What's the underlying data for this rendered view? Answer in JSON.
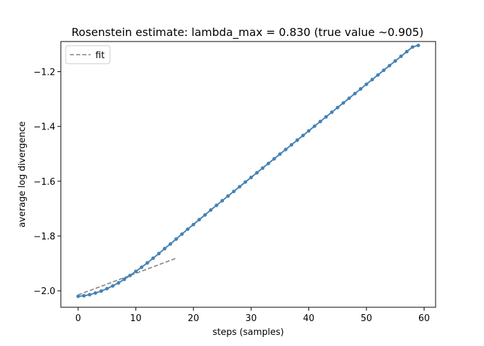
{
  "chart_data": {
    "type": "line",
    "title": "Rosenstein estimate: lambda_max = 0.830 (true value ~0.905)",
    "xlabel": "steps (samples)",
    "ylabel": "average log divergence",
    "xlim": [
      -3,
      62
    ],
    "ylim": [
      -2.06,
      -1.09
    ],
    "xticks": [
      0,
      10,
      20,
      30,
      40,
      50,
      60
    ],
    "yticks": [
      -2.0,
      -1.8,
      -1.6,
      -1.4,
      -1.2
    ],
    "legend": {
      "placement": "top-left",
      "entries": [
        "fit"
      ]
    },
    "grid": false,
    "series": [
      {
        "role": "data",
        "color": "#4682b4",
        "x": [
          0,
          1,
          2,
          3,
          4,
          5,
          6,
          7,
          8,
          9,
          10,
          11,
          12,
          13,
          14,
          15,
          16,
          17,
          18,
          19,
          20,
          21,
          22,
          23,
          24,
          25,
          26,
          27,
          28,
          29,
          30,
          31,
          32,
          33,
          34,
          35,
          36,
          37,
          38,
          39,
          40,
          41,
          42,
          43,
          44,
          45,
          46,
          47,
          48,
          49,
          50,
          51,
          52,
          53,
          54,
          55,
          56,
          57,
          58,
          59
        ],
        "y": [
          -2.02,
          -2.018,
          -2.014,
          -2.008,
          -2.001,
          -1.992,
          -1.982,
          -1.971,
          -1.958,
          -1.944,
          -1.929,
          -1.914,
          -1.898,
          -1.881,
          -1.864,
          -1.846,
          -1.829,
          -1.811,
          -1.793,
          -1.775,
          -1.758,
          -1.74,
          -1.723,
          -1.705,
          -1.688,
          -1.671,
          -1.654,
          -1.637,
          -1.62,
          -1.603,
          -1.586,
          -1.569,
          -1.552,
          -1.535,
          -1.518,
          -1.501,
          -1.484,
          -1.467,
          -1.45,
          -1.433,
          -1.416,
          -1.399,
          -1.382,
          -1.365,
          -1.348,
          -1.331,
          -1.314,
          -1.297,
          -1.28,
          -1.263,
          -1.246,
          -1.229,
          -1.212,
          -1.195,
          -1.178,
          -1.161,
          -1.144,
          -1.127,
          -1.11,
          -1.104
        ]
      },
      {
        "role": "fit",
        "name": "fit",
        "color": "#808080",
        "x": [
          0,
          17
        ],
        "y": [
          -2.015,
          -1.881
        ]
      }
    ]
  }
}
